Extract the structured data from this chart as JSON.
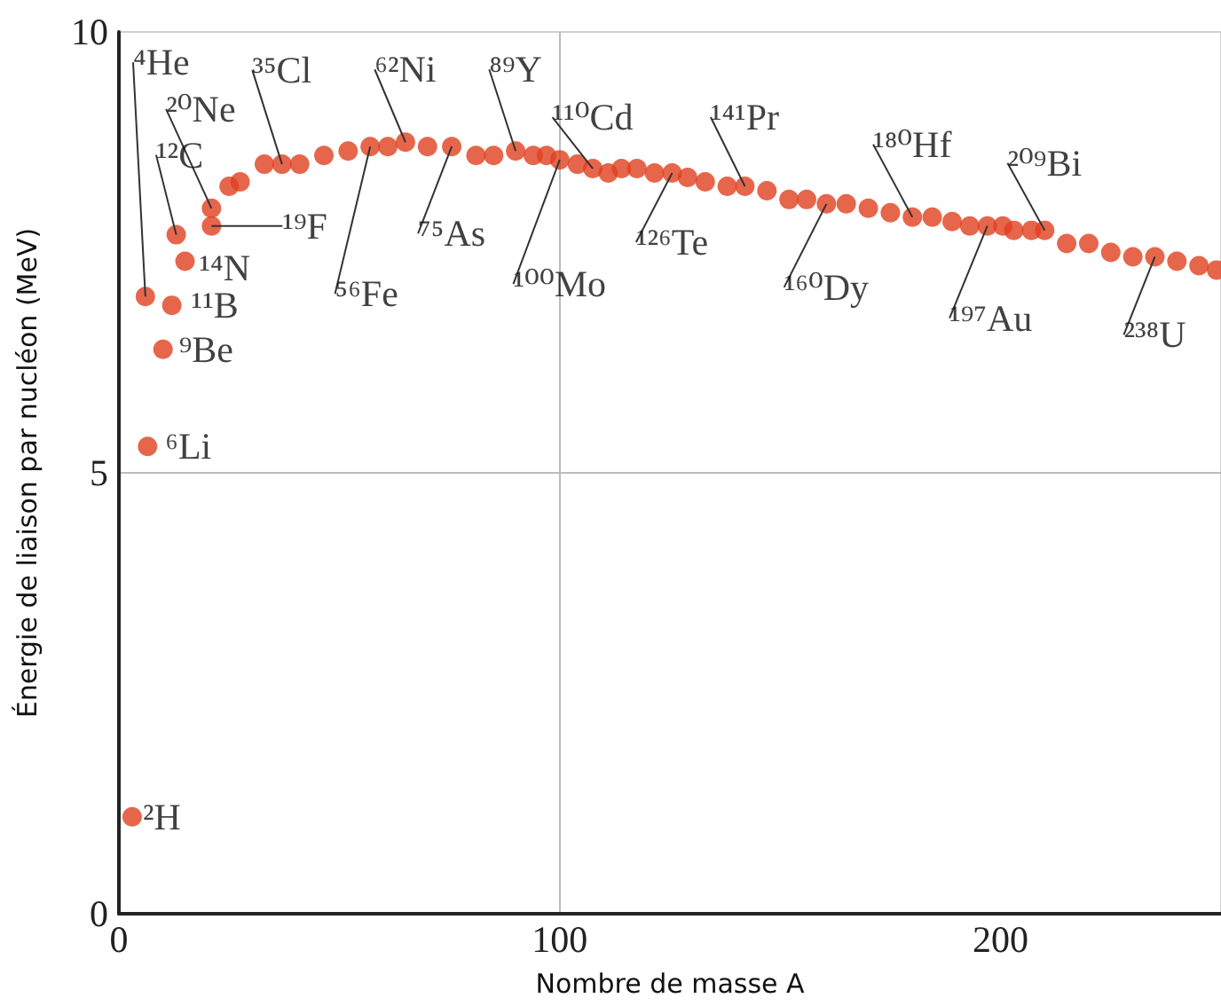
{
  "chart_data": {
    "type": "scatter",
    "xlabel": "Nombre de masse A",
    "ylabel": "Énergie de liaison par nucléon (MeV)",
    "xlim": [
      0,
      250
    ],
    "ylim": [
      0,
      10
    ],
    "xticks": [
      0,
      100,
      200
    ],
    "yticks": [
      0,
      5,
      10
    ],
    "grid": true,
    "marker": "circle",
    "series": [
      {
        "color": "#e0401f",
        "x": [
          3,
          6,
          6.5,
          10,
          12,
          13,
          15,
          21,
          21,
          25,
          27.5,
          33,
          37,
          41,
          46.5,
          52,
          57,
          61,
          65,
          70,
          75.5,
          81,
          85,
          90,
          94,
          97,
          100,
          104,
          107.5,
          111,
          114,
          117.5,
          121.5,
          125.5,
          129,
          133,
          138,
          142,
          147,
          152,
          156,
          160.5,
          165,
          170,
          175,
          180,
          184.5,
          189,
          193,
          197,
          200.5,
          203,
          207,
          210,
          215,
          220,
          225,
          230,
          235,
          240,
          245,
          249
        ],
        "values": [
          1.1,
          7.0,
          5.3,
          6.4,
          6.9,
          7.7,
          7.4,
          7.8,
          8.0,
          8.25,
          8.3,
          8.5,
          8.5,
          8.5,
          8.6,
          8.65,
          8.7,
          8.7,
          8.75,
          8.7,
          8.7,
          8.6,
          8.6,
          8.65,
          8.6,
          8.6,
          8.55,
          8.5,
          8.45,
          8.4,
          8.45,
          8.45,
          8.4,
          8.4,
          8.35,
          8.3,
          8.25,
          8.25,
          8.2,
          8.1,
          8.1,
          8.05,
          8.05,
          8.0,
          7.95,
          7.9,
          7.9,
          7.85,
          7.8,
          7.8,
          7.8,
          7.75,
          7.75,
          7.75,
          7.6,
          7.6,
          7.5,
          7.45,
          7.45,
          7.4,
          7.35,
          7.3
        ]
      }
    ],
    "annotations": [
      {
        "text": "²H",
        "x": 3,
        "y": 1.1
      },
      {
        "text": "⁶Li",
        "x": 6.5,
        "y": 5.3
      },
      {
        "text": "⁴He",
        "x": 6,
        "y": 7.0
      },
      {
        "text": "⁹Be",
        "x": 10,
        "y": 6.4
      },
      {
        "text": "¹¹B",
        "x": 12,
        "y": 6.9
      },
      {
        "text": "¹²C",
        "x": 13,
        "y": 7.7
      },
      {
        "text": "¹⁴N",
        "x": 15,
        "y": 7.4
      },
      {
        "text": "¹⁹F",
        "x": 21,
        "y": 7.8
      },
      {
        "text": "²⁰Ne",
        "x": 21,
        "y": 8.0
      },
      {
        "text": "³⁵Cl",
        "x": 37,
        "y": 8.5
      },
      {
        "text": "⁵⁶Fe",
        "x": 57,
        "y": 8.7
      },
      {
        "text": "⁶²Ni",
        "x": 65,
        "y": 8.75
      },
      {
        "text": "⁷⁵As",
        "x": 75.5,
        "y": 8.7
      },
      {
        "text": "⁸⁹Y",
        "x": 90,
        "y": 8.65
      },
      {
        "text": "¹⁰⁰Mo",
        "x": 100,
        "y": 8.55
      },
      {
        "text": "¹¹⁰Cd",
        "x": 107.5,
        "y": 8.45
      },
      {
        "text": "¹²⁶Te",
        "x": 125.5,
        "y": 8.4
      },
      {
        "text": "¹⁴¹Pr",
        "x": 142,
        "y": 8.25
      },
      {
        "text": "¹⁶⁰Dy",
        "x": 160.5,
        "y": 8.05
      },
      {
        "text": "¹⁸⁰Hf",
        "x": 180,
        "y": 7.9
      },
      {
        "text": "¹⁹⁷Au",
        "x": 197,
        "y": 7.8
      },
      {
        "text": "²⁰⁹Bi",
        "x": 210,
        "y": 7.75
      },
      {
        "text": "²³⁸U",
        "x": 235,
        "y": 7.45
      }
    ]
  }
}
